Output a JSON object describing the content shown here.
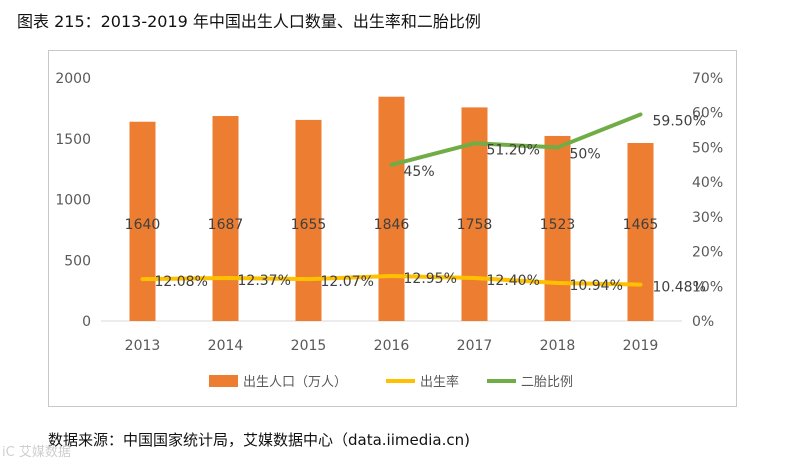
{
  "figure_title": "图表 215：2013-2019 年中国出生人口数量、出生率和二胎比例",
  "source": "数据来源：中国国家统计局，艾媒数据中心（data.iimedia.cn)",
  "watermark": "iC 艾媒数据",
  "colors": {
    "bar": "#ED7D31",
    "birth_rate": "#FFC000",
    "second_child": "#70AD47",
    "axis_text": "#595959",
    "grid": "#D9D9D9"
  },
  "chart_data": {
    "type": "bar",
    "categories": [
      "2013",
      "2014",
      "2015",
      "2016",
      "2017",
      "2018",
      "2019"
    ],
    "series": [
      {
        "name": "出生人口（万人）",
        "type": "bar",
        "axis": "left",
        "values": [
          1640,
          1687,
          1655,
          1846,
          1758,
          1523,
          1465
        ],
        "labels": [
          "1640",
          "1687",
          "1655",
          "1846",
          "1758",
          "1523",
          "1465"
        ]
      },
      {
        "name": "出生率",
        "type": "line",
        "axis": "right",
        "values": [
          12.08,
          12.37,
          12.07,
          12.95,
          12.4,
          10.94,
          10.48
        ],
        "labels": [
          "12.08%",
          "12.37%",
          "12.07%",
          "12.95%",
          "12.40%",
          "10.94%",
          "10.48%"
        ]
      },
      {
        "name": "二胎比例",
        "type": "line",
        "axis": "right",
        "values": [
          null,
          null,
          null,
          45,
          51.2,
          50,
          59.5
        ],
        "labels": [
          "",
          "",
          "",
          "45%",
          "51.20%",
          "50%",
          "59.50%"
        ]
      }
    ],
    "y_left": {
      "min": 0,
      "max": 2000,
      "ticks": [
        "0",
        "500",
        "1000",
        "1500",
        "2000"
      ]
    },
    "y_right": {
      "min": 0,
      "max": 70,
      "ticks": [
        "0%",
        "10%",
        "20%",
        "30%",
        "40%",
        "50%",
        "60%",
        "70%"
      ]
    },
    "legend_position": "bottom",
    "grid": false
  }
}
